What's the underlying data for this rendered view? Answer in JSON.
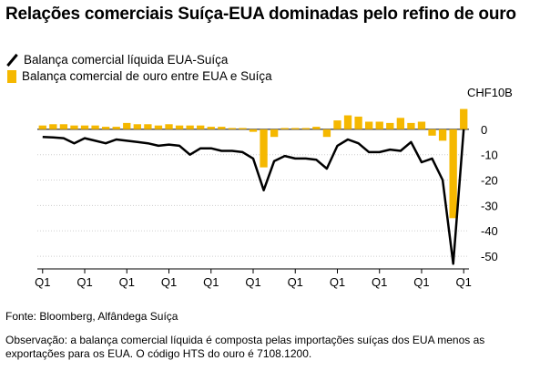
{
  "title": "Relações comerciais Suíça-EUA dominadas pelo refino de ouro",
  "legend": {
    "net": "Balança comercial líquida EUA-Suíça",
    "gold": "Balança comercial de ouro entre EUA e Suíça"
  },
  "colors": {
    "net": "#000000",
    "gold": "#f5b800",
    "grid": "#cfcfcf",
    "axis": "#000000"
  },
  "source": "Fonte: Bloomberg, Alfândega Suíça",
  "note": "Observação: a balança comercial líquida é composta pelas importações suíças dos EUA menos as exportações para os EUA. O código HTS do ouro é 7108.1200.",
  "chart_data": {
    "type": "bar",
    "unit_label": "CHF10B",
    "ylim": [
      -55,
      10
    ],
    "yticks": [
      0,
      -10,
      -20,
      -30,
      -40,
      -50
    ],
    "x_tick_labels": [
      "Q1",
      "Q1",
      "Q1",
      "Q1",
      "Q1",
      "Q1",
      "Q1",
      "Q1",
      "Q1",
      "Q1",
      "Q1"
    ],
    "x_tick_positions": [
      0,
      4,
      8,
      12,
      16,
      20,
      24,
      28,
      32,
      36,
      40
    ],
    "series": [
      {
        "name": "Balança comercial de ouro entre EUA e Suíça",
        "kind": "bar",
        "values": [
          1.5,
          2,
          2,
          1.5,
          1.5,
          1.5,
          1,
          1,
          2.5,
          2,
          2,
          1.5,
          2,
          1.5,
          1.5,
          1.5,
          1,
          1,
          0.5,
          0.5,
          -1,
          -15,
          -3,
          0.5,
          0.5,
          0.5,
          1,
          -3,
          3.5,
          5.5,
          5,
          3,
          3,
          2.5,
          4.5,
          2.5,
          3,
          -2.5,
          -4.5,
          -35,
          8
        ]
      },
      {
        "name": "Balança comercial líquida EUA-Suíça",
        "kind": "line",
        "values": [
          -3,
          -3.2,
          -3.5,
          -5.5,
          -3.5,
          -4.5,
          -5.5,
          -4,
          -4.5,
          -5,
          -5.5,
          -6.5,
          -6,
          -6.5,
          -10,
          -7.5,
          -7.5,
          -8.5,
          -8.5,
          -9,
          -11.5,
          -24,
          -12.5,
          -10.5,
          -11.5,
          -11.5,
          -12,
          -15.5,
          -6.5,
          -4,
          -5.5,
          -9,
          -9,
          -8,
          -8.5,
          -5,
          -13,
          -11.5,
          -20,
          -53,
          0
        ]
      }
    ]
  }
}
